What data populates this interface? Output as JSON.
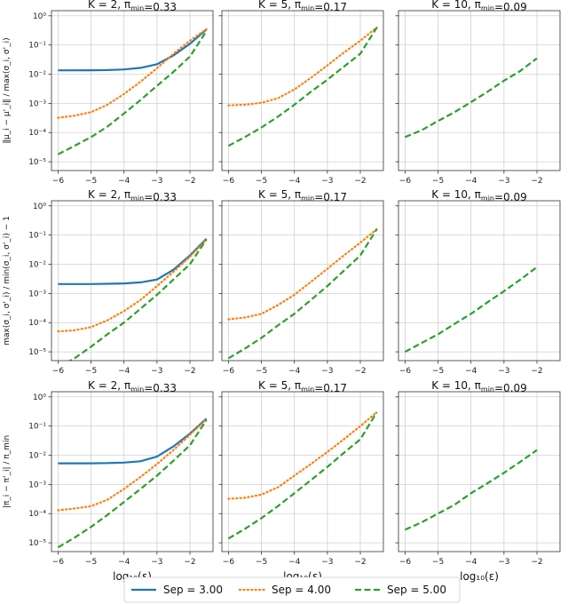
{
  "legend": [
    {
      "name": "Sep = 3.00",
      "color": "#1f77b4",
      "style": "solid"
    },
    {
      "name": "Sep = 4.00",
      "color": "#ff7f0e",
      "style": "dotted"
    },
    {
      "name": "Sep = 5.00",
      "color": "#2ca02c",
      "style": "dashed"
    }
  ],
  "chart_data": [
    {
      "type": "line",
      "row": 0,
      "col": 0,
      "title": "K = 2, π_min=0.33",
      "ylabel": "‖μ_i − μ'_i‖ / max(σ_i, σ'_i)",
      "xlabel": "",
      "yscale": "log",
      "ylim": [
        5e-06,
        1.5
      ],
      "xlim": [
        -6.2,
        -1.3
      ],
      "x": [
        -6,
        -5.5,
        -5,
        -4.5,
        -4,
        -3.5,
        -3,
        -2.5,
        -2,
        -1.5
      ],
      "series": [
        {
          "name": "Sep = 3.00",
          "values": [
            0.0135,
            0.0135,
            0.0136,
            0.0138,
            0.0145,
            0.0165,
            0.022,
            0.044,
            0.11,
            0.34
          ]
        },
        {
          "name": "Sep = 4.00",
          "values": [
            0.00032,
            0.00038,
            0.0005,
            0.0009,
            0.0021,
            0.0055,
            0.016,
            0.05,
            0.14,
            0.35
          ]
        },
        {
          "name": "Sep = 5.00",
          "values": [
            1.8e-05,
            3.5e-05,
            7e-05,
            0.00016,
            0.00045,
            0.0013,
            0.004,
            0.012,
            0.04,
            0.3
          ]
        }
      ]
    },
    {
      "type": "line",
      "row": 0,
      "col": 1,
      "title": "K = 5, π_min=0.17",
      "xlabel": "",
      "yscale": "log",
      "ylim": [
        5e-06,
        1.5
      ],
      "xlim": [
        -6.2,
        -1.3
      ],
      "x": [
        -6,
        -5.5,
        -5,
        -4.5,
        -4,
        -3.5,
        -3,
        -2.5,
        -2,
        -1.5
      ],
      "series": [
        {
          "name": "Sep = 4.00",
          "values": [
            0.00085,
            0.0009,
            0.00105,
            0.0015,
            0.003,
            0.0075,
            0.02,
            0.055,
            0.14,
            0.4
          ]
        },
        {
          "name": "Sep = 5.00",
          "values": [
            3.5e-05,
            7e-05,
            0.00015,
            0.00035,
            0.0009,
            0.0025,
            0.0065,
            0.018,
            0.05,
            0.4
          ]
        }
      ]
    },
    {
      "type": "line",
      "row": 0,
      "col": 2,
      "title": "K = 10, π_min=0.09",
      "xlabel": "",
      "yscale": "log",
      "ylim": [
        5e-06,
        1.5
      ],
      "xlim": [
        -6.2,
        -1.3
      ],
      "x": [
        -6,
        -5.5,
        -5,
        -4.5,
        -4,
        -3.5,
        -3,
        -2.5,
        -2
      ],
      "series": [
        {
          "name": "Sep = 5.00",
          "values": [
            7e-05,
            0.00012,
            0.00025,
            0.0005,
            0.0011,
            0.0025,
            0.006,
            0.013,
            0.035
          ]
        }
      ]
    },
    {
      "type": "line",
      "row": 1,
      "col": 0,
      "title": "K = 2, π_min=0.33",
      "ylabel": "max(σ_i, σ'_i) / min(σ_i, σ'_i) − 1",
      "xlabel": "",
      "yscale": "log",
      "ylim": [
        5e-06,
        1.5
      ],
      "xlim": [
        -6.2,
        -1.3
      ],
      "x": [
        -6,
        -5.5,
        -5,
        -4.5,
        -4,
        -3.5,
        -3,
        -2.5,
        -2,
        -1.5
      ],
      "series": [
        {
          "name": "Sep = 3.00",
          "values": [
            0.0021,
            0.0021,
            0.0021,
            0.00215,
            0.0022,
            0.0024,
            0.003,
            0.0065,
            0.02,
            0.075
          ]
        },
        {
          "name": "Sep = 4.00",
          "values": [
            5e-05,
            5.5e-05,
            7e-05,
            0.00012,
            0.00025,
            0.0006,
            0.0018,
            0.0055,
            0.018,
            0.07
          ]
        },
        {
          "name": "Sep = 5.00",
          "values": [
            3e-06,
            6e-06,
            1.5e-05,
            4e-05,
            0.0001,
            0.0003,
            0.0009,
            0.003,
            0.01,
            0.07
          ]
        }
      ]
    },
    {
      "type": "line",
      "row": 1,
      "col": 1,
      "title": "K = 5, π_min=0.17",
      "xlabel": "",
      "yscale": "log",
      "ylim": [
        5e-06,
        1.5
      ],
      "xlim": [
        -6.2,
        -1.3
      ],
      "x": [
        -6,
        -5.5,
        -5,
        -4.5,
        -4,
        -3.5,
        -3,
        -2.5,
        -2,
        -1.5
      ],
      "series": [
        {
          "name": "Sep = 4.00",
          "values": [
            0.00013,
            0.00015,
            0.0002,
            0.0004,
            0.0009,
            0.0025,
            0.007,
            0.02,
            0.055,
            0.16
          ]
        },
        {
          "name": "Sep = 5.00",
          "values": [
            6e-06,
            1.3e-05,
            3e-05,
            8e-05,
            0.0002,
            0.0006,
            0.0018,
            0.006,
            0.02,
            0.16
          ]
        }
      ]
    },
    {
      "type": "line",
      "row": 1,
      "col": 2,
      "title": "K = 10, π_min=0.09",
      "xlabel": "",
      "yscale": "log",
      "ylim": [
        5e-06,
        1.5
      ],
      "xlim": [
        -6.2,
        -1.3
      ],
      "x": [
        -6,
        -5.5,
        -5,
        -4.5,
        -4,
        -3.5,
        -3,
        -2.5,
        -2
      ],
      "series": [
        {
          "name": "Sep = 5.00",
          "values": [
            1e-05,
            2e-05,
            4e-05,
            9e-05,
            0.0002,
            0.0005,
            0.0012,
            0.003,
            0.008
          ]
        }
      ]
    },
    {
      "type": "line",
      "row": 2,
      "col": 0,
      "title": "K = 2, π_min=0.33",
      "ylabel": "|π_i − π'_i| / π_min",
      "xlabel": "log₁₀(ε)",
      "yscale": "log",
      "ylim": [
        5e-06,
        1.5
      ],
      "xlim": [
        -6.2,
        -1.3
      ],
      "x": [
        -6,
        -5.5,
        -5,
        -4.5,
        -4,
        -3.5,
        -3,
        -2.5,
        -2,
        -1.5
      ],
      "series": [
        {
          "name": "Sep = 3.00",
          "values": [
            0.0053,
            0.0053,
            0.0053,
            0.0054,
            0.0056,
            0.0062,
            0.009,
            0.02,
            0.055,
            0.18
          ]
        },
        {
          "name": "Sep = 4.00",
          "values": [
            0.00013,
            0.00015,
            0.00018,
            0.0003,
            0.0007,
            0.0018,
            0.005,
            0.015,
            0.05,
            0.17
          ]
        },
        {
          "name": "Sep = 5.00",
          "values": [
            7e-06,
            1.5e-05,
            3.5e-05,
            9e-05,
            0.00025,
            0.0007,
            0.002,
            0.0065,
            0.022,
            0.16
          ]
        }
      ]
    },
    {
      "type": "line",
      "row": 2,
      "col": 1,
      "title": "K = 5, π_min=0.17",
      "xlabel": "log₁₀(ε)",
      "yscale": "log",
      "ylim": [
        5e-06,
        1.5
      ],
      "xlim": [
        -6.2,
        -1.3
      ],
      "x": [
        -6,
        -5.5,
        -5,
        -4.5,
        -4,
        -3.5,
        -3,
        -2.5,
        -2,
        -1.5
      ],
      "series": [
        {
          "name": "Sep = 4.00",
          "values": [
            0.00032,
            0.00035,
            0.00045,
            0.0008,
            0.002,
            0.005,
            0.013,
            0.035,
            0.1,
            0.3
          ]
        },
        {
          "name": "Sep = 5.00",
          "values": [
            1.4e-05,
            3e-05,
            7e-05,
            0.00018,
            0.0005,
            0.0014,
            0.004,
            0.012,
            0.035,
            0.3
          ]
        }
      ]
    },
    {
      "type": "line",
      "row": 2,
      "col": 2,
      "title": "K = 10, π_min=0.09",
      "xlabel": "log₁₀(ε)",
      "yscale": "log",
      "ylim": [
        5e-06,
        1.5
      ],
      "xlim": [
        -6.2,
        -1.3
      ],
      "x": [
        -6,
        -5.5,
        -5,
        -4.5,
        -4,
        -3.5,
        -3,
        -2.5,
        -2
      ],
      "series": [
        {
          "name": "Sep = 5.00",
          "values": [
            2.8e-05,
            5e-05,
            0.0001,
            0.0002,
            0.0005,
            0.0011,
            0.0025,
            0.006,
            0.015
          ]
        }
      ]
    }
  ],
  "axes": {
    "xticks": [
      -6,
      -5,
      -4,
      -3,
      -2
    ],
    "xticklabels": [
      "−6",
      "−5",
      "−4",
      "−3",
      "−2"
    ],
    "yticks": [
      1e-05,
      0.0001,
      0.001,
      0.01,
      0.1,
      1
    ],
    "yticklabels": [
      "10⁻⁵",
      "10⁻⁴",
      "10⁻³",
      "10⁻²",
      "10⁻¹",
      "10⁰"
    ]
  }
}
